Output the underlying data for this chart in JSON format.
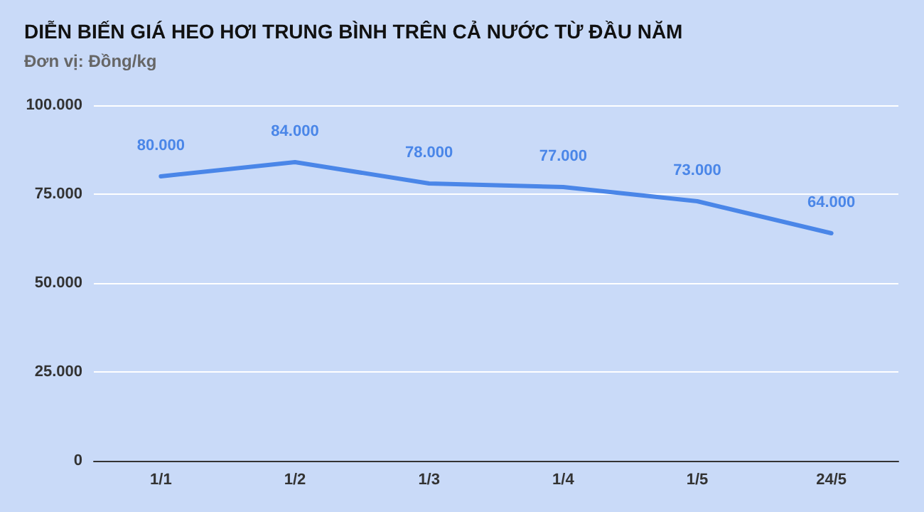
{
  "chart_data": {
    "type": "line",
    "title": "DIỄN BIẾN GIÁ HEO HƠI TRUNG BÌNH TRÊN CẢ NƯỚC TỪ ĐẦU NĂM",
    "subtitle": "Đơn vị: Đồng/kg",
    "categories": [
      "1/1",
      "1/2",
      "1/3",
      "1/4",
      "1/5",
      "24/5"
    ],
    "series": [
      {
        "color": "#4a86e8",
        "values": [
          80000,
          84000,
          78000,
          77000,
          73000,
          64000
        ],
        "value_labels": [
          "80.000",
          "84.000",
          "78.000",
          "77.000",
          "73.000",
          "64.000"
        ]
      }
    ],
    "ylim": [
      0,
      100000
    ],
    "yticks": [
      0,
      {
        "value": 25000,
        "label": "25.000"
      },
      {
        "value": 50000,
        "label": "50.000"
      },
      {
        "value": 75000,
        "label": "75.000"
      },
      {
        "value": 100000,
        "label": "100.000"
      }
    ],
    "grid": "y",
    "marker": "none",
    "line_style": "solid"
  }
}
